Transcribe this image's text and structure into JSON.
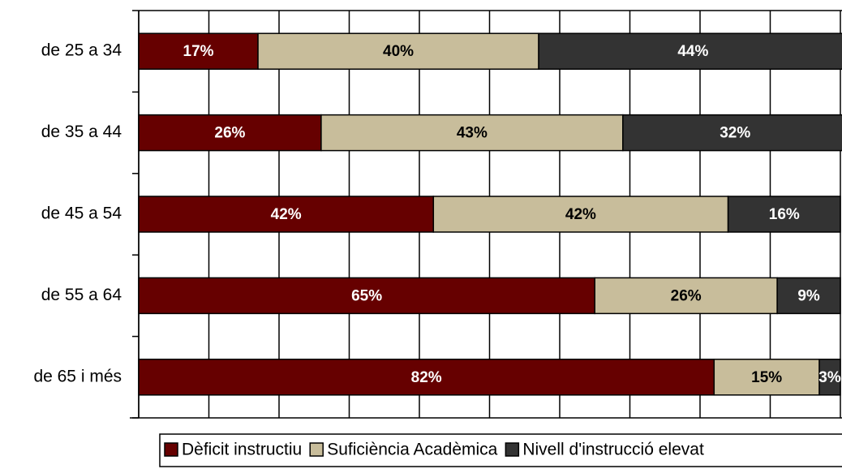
{
  "chart_data": {
    "type": "stacked-bar-horizontal",
    "categories": [
      "de 25 a 34",
      "de 35 a 44",
      "de 45 a 54",
      "de 55 a 64",
      "de 65 i més"
    ],
    "series": [
      {
        "name": "Dèficit instructiu",
        "color": "#660000",
        "label_color": "#ffffff",
        "values": [
          17,
          26,
          42,
          65,
          82
        ],
        "value_labels": [
          "17%",
          "26%",
          "42%",
          "65%",
          "82%"
        ]
      },
      {
        "name": "Suficiència Acadèmica",
        "color": "#c8bd9b",
        "label_color": "#000000",
        "values": [
          40,
          43,
          42,
          26,
          15
        ],
        "value_labels": [
          "40%",
          "43%",
          "42%",
          "26%",
          "15%"
        ]
      },
      {
        "name": "Nivell d'instrucció elevat",
        "color": "#333333",
        "label_color": "#ffffff",
        "values": [
          44,
          32,
          16,
          9,
          3
        ],
        "value_labels": [
          "44%",
          "32%",
          "16%",
          "9%",
          "3%"
        ]
      }
    ],
    "xlim": [
      0,
      100
    ],
    "xticks": [
      0,
      10,
      20,
      30,
      40,
      50,
      60,
      70,
      80,
      90,
      100
    ],
    "grid": true,
    "legend": "bottom"
  }
}
